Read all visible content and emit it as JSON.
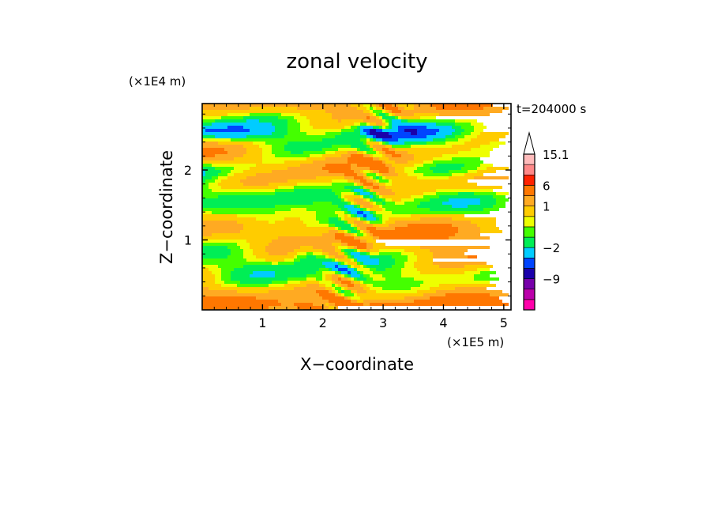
{
  "chart_data": {
    "type": "heatmap",
    "title": "zonal velocity",
    "xlabel": "X−coordinate",
    "ylabel": "Z−coordinate",
    "x_unit": "(×1E5 m)",
    "y_unit": "(×1E4 m)",
    "time_label": "t=204000 s",
    "xlim": [
      0,
      5.12
    ],
    "ylim": [
      0,
      2.95
    ],
    "x_ticks": [
      "1",
      "2",
      "3",
      "4",
      "5"
    ],
    "y_ticks": [
      "1",
      "2"
    ],
    "x_tick_values": [
      1,
      2,
      3,
      4,
      5
    ],
    "y_tick_values": [
      1,
      2
    ],
    "colorbar": {
      "labels": [
        "15.1",
        "6",
        "1",
        "−2",
        "−9"
      ],
      "bins": [
        {
          "color": "#ff00aa",
          "range": "< -12"
        },
        {
          "color": "#bb00aa",
          "range": "-12 to -9"
        },
        {
          "color": "#7700aa",
          "range": "-9 to -6"
        },
        {
          "color": "#1a00aa",
          "range": "-6 to -4"
        },
        {
          "color": "#0044ff",
          "range": "-4 to -2"
        },
        {
          "color": "#00ccff",
          "range": "-2 to -1"
        },
        {
          "color": "#00ee55",
          "range": "-1 to 0"
        },
        {
          "color": "#44ff00",
          "range": "0 to 0.5"
        },
        {
          "color": "#eeff00",
          "range": "0.5 to 1"
        },
        {
          "color": "#ffcc00",
          "range": "1 to 2"
        },
        {
          "color": "#ffaa22",
          "range": "2 to 4"
        },
        {
          "color": "#ff7700",
          "range": "4 to 6"
        },
        {
          "color": "#ff2200",
          "range": "6 to 9"
        },
        {
          "color": "#ff8888",
          "range": "9 to 12"
        },
        {
          "color": "#ffbbbb",
          "range": "12 to 15.1"
        },
        {
          "color": "#ffffff",
          "range": "> 15.1"
        }
      ]
    },
    "field_description_colors": {
      "background": "#eeff00",
      "dominant": [
        "#eeff00",
        "#00ee55",
        "#ffcc00",
        "#00ccff",
        "#0044ff"
      ]
    }
  }
}
